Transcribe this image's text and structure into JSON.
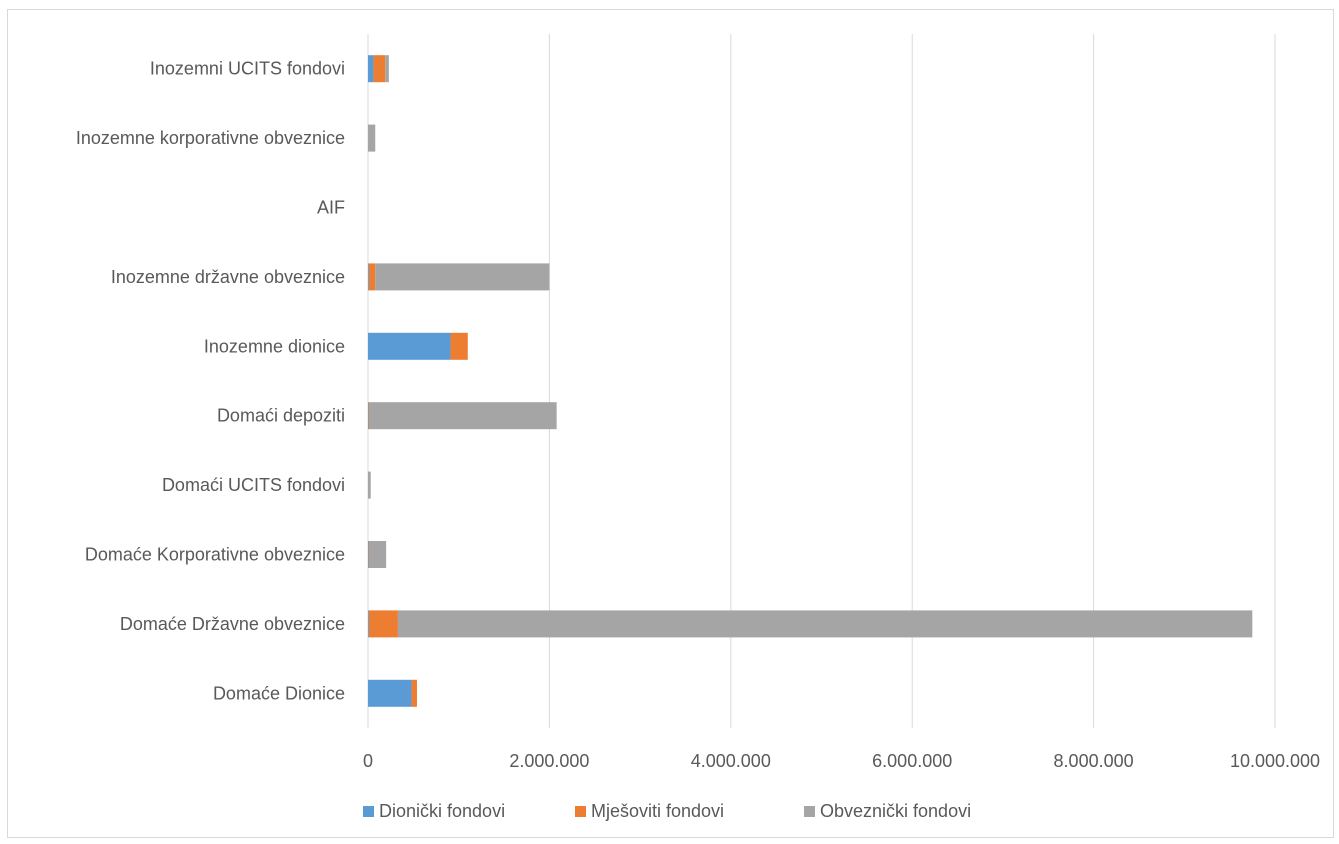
{
  "chart_data": {
    "type": "bar",
    "orientation": "horizontal",
    "stacked": true,
    "categories": [
      "Domaće Dionice",
      "Domaće Državne obveznice",
      "Domaće Korporativne obveznice",
      "Domaći UCITS fondovi",
      "Domaći depoziti",
      "Inozemne dionice",
      "Inozemne državne obveznice",
      "AIF",
      "Inozemne korporativne obveznice",
      "Inozemni UCITS fondovi"
    ],
    "series": [
      {
        "name": "Dionički fondovi",
        "color": "#5b9bd5",
        "values": [
          480000,
          10000,
          5000,
          0,
          10000,
          910000,
          10000,
          0,
          0,
          60000
        ]
      },
      {
        "name": "Mješoviti fondovi",
        "color": "#ed7d31",
        "values": [
          60000,
          320000,
          5000,
          0,
          10000,
          190000,
          70000,
          0,
          0,
          130000
        ]
      },
      {
        "name": "Obveznički fondovi",
        "color": "#a5a5a5",
        "values": [
          0,
          9420000,
          190000,
          30000,
          2060000,
          0,
          1920000,
          0,
          80000,
          40000
        ]
      }
    ],
    "xlim": [
      0,
      10000000
    ],
    "xticks": [
      0,
      2000000,
      4000000,
      6000000,
      8000000,
      10000000
    ],
    "xtick_labels": [
      "0",
      "2.000.000",
      "4.000.000",
      "6.000.000",
      "8.000.000",
      "10.000.000"
    ],
    "title": "",
    "xlabel": "",
    "ylabel": "",
    "grid": "vertical",
    "legend_position": "bottom"
  }
}
